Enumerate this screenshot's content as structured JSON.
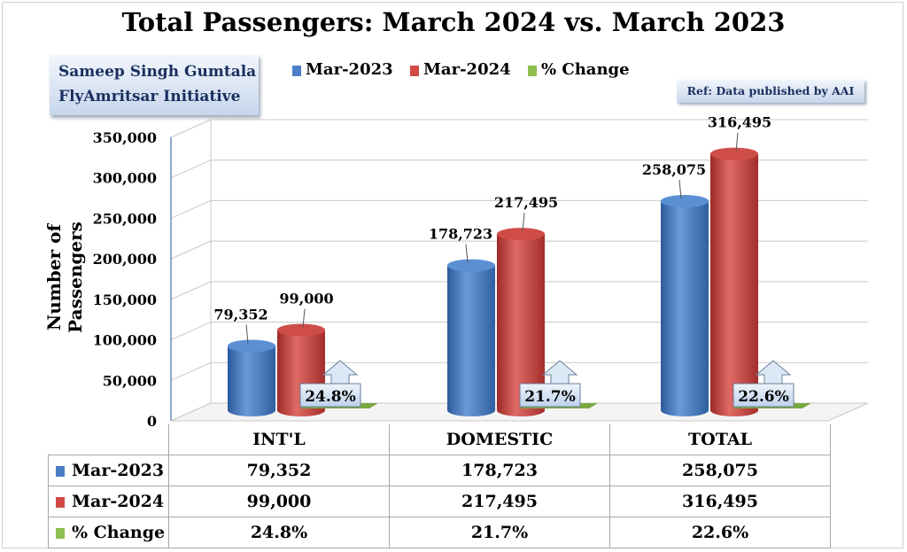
{
  "title": "Total Passengers: March 2024 vs. March 2023",
  "credit": {
    "line1": "Sameep Singh Gumtala",
    "line2": "FlyAmritsar Initiative"
  },
  "reference": "Ref: Data published by AAI",
  "colors": {
    "mar2023": "#4a7ec6",
    "mar2024": "#d24a46",
    "change": "#8fbf4f"
  },
  "chart_data": {
    "type": "bar",
    "title": "Total Passengers: March 2024 vs. March 2023",
    "ylabel": "Number of Passengers",
    "xlabel": "",
    "ylim": [
      0,
      350000
    ],
    "yticks": [
      "0",
      "50,000",
      "100,000",
      "150,000",
      "200,000",
      "250,000",
      "300,000",
      "350,000"
    ],
    "categories": [
      "INT'L",
      "DOMESTIC",
      "TOTAL"
    ],
    "series": [
      {
        "name": "Mar-2023",
        "values": [
          79352,
          178723,
          258075
        ],
        "labels": [
          "79,352",
          "178,723",
          "258,075"
        ]
      },
      {
        "name": "Mar-2024",
        "values": [
          99000,
          217495,
          316495
        ],
        "labels": [
          "99,000",
          "217,495",
          "316,495"
        ]
      }
    ],
    "change": {
      "name": "% Change",
      "labels": [
        "24.8%",
        "21.7%",
        "22.6%"
      ]
    }
  },
  "legend": {
    "items": [
      "Mar-2023",
      "Mar-2024",
      "% Change"
    ]
  },
  "table": {
    "headers": [
      "INT'L",
      "DOMESTIC",
      "TOTAL"
    ],
    "rows": [
      {
        "label": "Mar-2023",
        "cells": [
          "79,352",
          "178,723",
          "258,075"
        ]
      },
      {
        "label": "Mar-2024",
        "cells": [
          "99,000",
          "217,495",
          "316,495"
        ]
      },
      {
        "label": "% Change",
        "cells": [
          "24.8%",
          "21.7%",
          "22.6%"
        ]
      }
    ]
  }
}
